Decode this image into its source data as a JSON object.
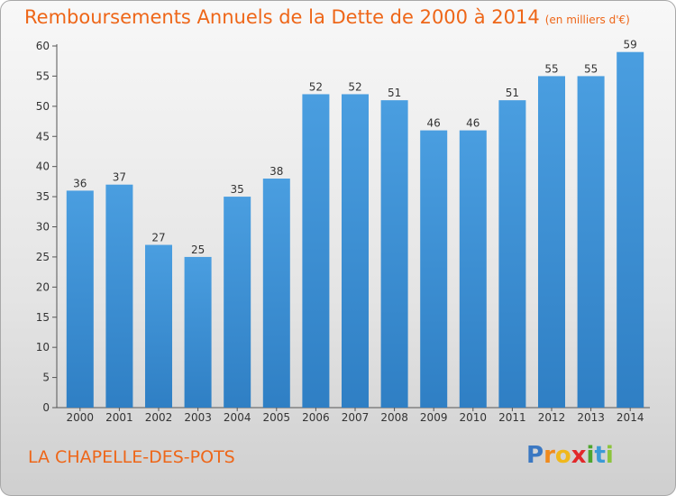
{
  "title": "Remboursements Annuels de la Dette de 2000 à 2014",
  "unit": "(en milliers d'€)",
  "commune": "LA CHAPELLE-DES-POTS",
  "brand": {
    "letters": [
      "P",
      "r",
      "o",
      "x",
      "i",
      "t",
      "i"
    ],
    "colors": [
      "#3b78c2",
      "#f08a1c",
      "#f0b81c",
      "#e2282a",
      "#4da52e",
      "#3b9ad6",
      "#8cc43c"
    ]
  },
  "colors": {
    "bar": "#4a9ee0",
    "bar_dark": "#2f7fc4",
    "accent": "#ee6618"
  },
  "chart_data": {
    "type": "bar",
    "title": "Remboursements Annuels de la Dette de 2000 à 2014",
    "xlabel": "",
    "ylabel": "",
    "categories": [
      "2000",
      "2001",
      "2002",
      "2003",
      "2004",
      "2005",
      "2006",
      "2007",
      "2008",
      "2009",
      "2010",
      "2011",
      "2012",
      "2013",
      "2014"
    ],
    "values": [
      36,
      37,
      27,
      25,
      35,
      38,
      52,
      52,
      51,
      46,
      46,
      51,
      55,
      55,
      59
    ],
    "ylim": [
      0,
      60
    ],
    "yticks": [
      0,
      5,
      10,
      15,
      20,
      25,
      30,
      35,
      40,
      45,
      50,
      55,
      60
    ],
    "grid": false,
    "legend": "none"
  }
}
